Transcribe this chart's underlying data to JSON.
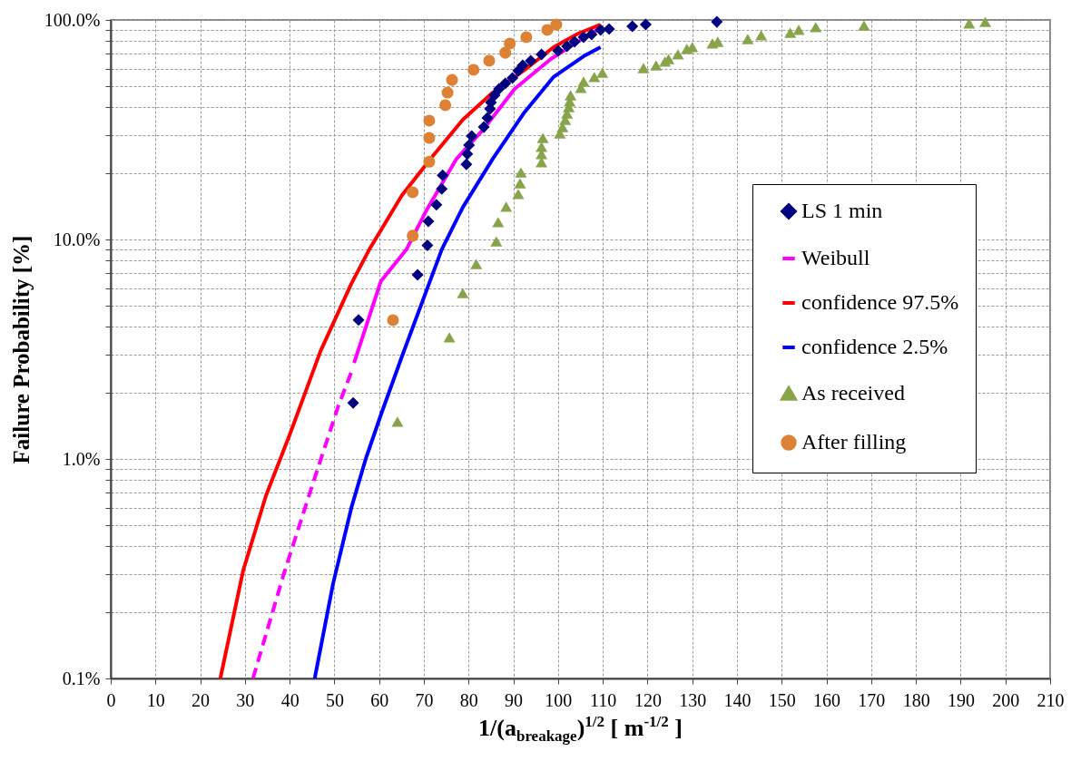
{
  "chart_data": {
    "type": "scatter",
    "xlabel": "1/(a$_{breakage}$)$^{1/2}$ [ m$^{-1/2}$ ]",
    "ylabel": "Failure Probability [%]",
    "xlim": [
      0,
      210
    ],
    "xticks": [
      0,
      10,
      20,
      30,
      40,
      50,
      60,
      70,
      80,
      90,
      100,
      110,
      120,
      130,
      140,
      150,
      160,
      170,
      180,
      190,
      200,
      210
    ],
    "ylim": [
      0.1,
      100
    ],
    "log": true,
    "yticks": [
      {
        "value": 0.1,
        "label": "0.1%"
      },
      {
        "value": 0.2,
        "label": null
      },
      {
        "value": 0.3,
        "label": null
      },
      {
        "value": 0.4,
        "label": null
      },
      {
        "value": 0.5,
        "label": null
      },
      {
        "value": 0.6,
        "label": null
      },
      {
        "value": 0.7,
        "label": null
      },
      {
        "value": 0.8,
        "label": null
      },
      {
        "value": 0.9,
        "label": null
      },
      {
        "value": 1,
        "label": "1.0%"
      },
      {
        "value": 2,
        "label": null
      },
      {
        "value": 3,
        "label": null
      },
      {
        "value": 4,
        "label": null
      },
      {
        "value": 5,
        "label": null
      },
      {
        "value": 6,
        "label": null
      },
      {
        "value": 7,
        "label": null
      },
      {
        "value": 8,
        "label": null
      },
      {
        "value": 9,
        "label": null
      },
      {
        "value": 10,
        "label": "10.0%"
      },
      {
        "value": 20,
        "label": null
      },
      {
        "value": 30,
        "label": null
      },
      {
        "value": 40,
        "label": null
      },
      {
        "value": 50,
        "label": null
      },
      {
        "value": 60,
        "label": null
      },
      {
        "value": 70,
        "label": null
      },
      {
        "value": 80,
        "label": null
      },
      {
        "value": 90,
        "label": null
      },
      {
        "value": 100,
        "label": "100.0%"
      }
    ],
    "grid": true,
    "legend": "right",
    "series": [
      {
        "name": "LS 1 min",
        "marker": "diamond",
        "color": "#000080",
        "x": [
          54.2,
          55.4,
          68.6,
          70.8,
          71,
          72.8,
          74,
          74.2,
          79.5,
          79.7,
          80.1,
          80.7,
          83.4,
          84.2,
          84.8,
          85,
          85.8,
          86.8,
          88.2,
          89.8,
          91.1,
          92.1,
          93.9,
          96.3,
          100,
          102,
          103.7,
          105.7,
          107.5,
          109.5,
          111.4,
          116.6,
          119.6,
          135.5
        ],
        "values": [
          1.8,
          4.3,
          6.9,
          9.4,
          12.1,
          14.4,
          17,
          19.6,
          22,
          24.5,
          26.9,
          29.6,
          32.5,
          35.8,
          39.4,
          42.1,
          45.4,
          48.5,
          51.4,
          54.4,
          58.7,
          62.1,
          65.2,
          69.7,
          72.4,
          75.9,
          79.6,
          83.5,
          85.9,
          90.1,
          90.9,
          93.6,
          95.4,
          98
        ]
      },
      {
        "name": "Weibull",
        "type": "line",
        "line_style": "solid",
        "color": "#ff00ff",
        "x": [
          54.4,
          60.4,
          66.1,
          70.6,
          77.3,
          83.4,
          90.3,
          98.4,
          105.7,
          109.5
        ],
        "values": [
          2.74,
          6.46,
          9,
          13.6,
          23.3,
          31.9,
          48.5,
          66.4,
          82.6,
          91.8
        ]
      },
      {
        "type": "line",
        "line_style": "dashed",
        "color": "#ff00ff",
        "x": [
          31.8,
          38.7,
          45.6,
          50.9,
          53.8
        ],
        "values": [
          0.1,
          0.3,
          0.82,
          1.75,
          2.49
        ]
      },
      {
        "name": "confidence 97.5%",
        "type": "line",
        "line_style": "solid",
        "color": "#ff0000",
        "x": [
          24.5,
          29.6,
          34.7,
          40.2,
          46.9,
          53.8,
          57.8,
          65.1,
          72,
          78.7,
          85.4,
          92.3,
          99,
          104.5,
          109.5
        ],
        "values": [
          0.1,
          0.31,
          0.68,
          1.32,
          3.1,
          6.3,
          9,
          15.9,
          24,
          35.1,
          46.7,
          58.7,
          75.2,
          86.7,
          95.3
        ]
      },
      {
        "name": "confidence 2.5%",
        "type": "line",
        "line_style": "solid",
        "color": "#0000ff",
        "x": [
          45.6,
          49.7,
          53.8,
          57,
          60.4,
          65.1,
          74,
          78.7,
          85.4,
          92.3,
          99,
          105.7,
          109.5
        ],
        "values": [
          0.1,
          0.27,
          0.6,
          1,
          1.59,
          2.93,
          9,
          14,
          23.3,
          37.5,
          55,
          68.3,
          75.2
        ]
      },
      {
        "name": "As received",
        "marker": "triangle",
        "color": "#88a44a",
        "x": [
          64.1,
          75.7,
          78.7,
          81.7,
          86.2,
          86.6,
          88.4,
          91.1,
          91.5,
          91.7,
          96.3,
          96.3,
          96.3,
          96.6,
          100.4,
          101,
          101.6,
          102,
          102.4,
          102.6,
          102.8,
          105.1,
          105.7,
          108.1,
          109.9,
          119.1,
          121.9,
          123.9,
          124.7,
          126.8,
          128.8,
          130,
          134.5,
          135.7,
          142.4,
          145.4,
          151.9,
          153.8,
          157.6,
          168.4,
          191.9,
          195.5
        ],
        "values": [
          1.48,
          3.58,
          5.7,
          7.73,
          9.8,
          12,
          14.1,
          16.1,
          18,
          20.2,
          22.5,
          24.5,
          26.4,
          29,
          30.4,
          32.5,
          35.1,
          37.5,
          40.1,
          42.5,
          45.4,
          49,
          52.4,
          55,
          57.5,
          60.4,
          62.1,
          64.6,
          66.4,
          69.7,
          73.8,
          75.2,
          78.1,
          79.6,
          81.9,
          85.1,
          87.5,
          90.1,
          92.7,
          94.4,
          96.3,
          98
        ]
      },
      {
        "name": "After filling",
        "marker": "circle",
        "color": "#dd8235",
        "x": [
          63.1,
          67.5,
          67.5,
          71.2,
          71.2,
          71.2,
          74.8,
          75.3,
          76.3,
          81.1,
          84.6,
          88.2,
          89.2,
          92.9,
          97.6,
          99.6
        ],
        "values": [
          4.29,
          10.4,
          16.4,
          22.6,
          29,
          34.8,
          40.9,
          46.7,
          53.3,
          59.3,
          65.2,
          70.9,
          78.1,
          83.5,
          90.1,
          95.3
        ]
      }
    ]
  }
}
